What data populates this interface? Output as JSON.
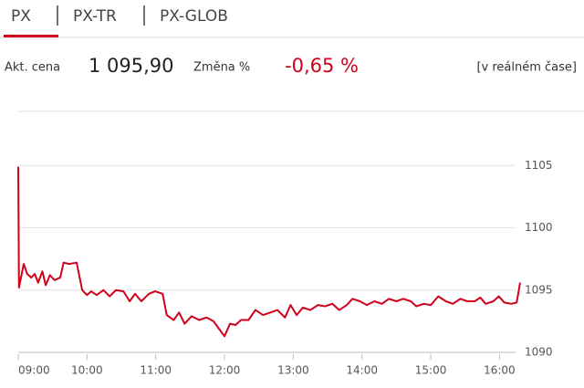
{
  "tabs": [
    "PX",
    "PX-TR",
    "PX-GLOB"
  ],
  "info": {
    "price_label": "Akt. cena",
    "price": "1 095,90",
    "change_label": "Změna %",
    "change": "-0,65 %",
    "realtime": "[v reálném čase]"
  },
  "chart_data": {
    "type": "line",
    "x": [
      9.0,
      9.01,
      9.08,
      9.13,
      9.19,
      9.24,
      9.29,
      9.35,
      9.4,
      9.46,
      9.53,
      9.61,
      9.66,
      9.74,
      9.85,
      9.93,
      10.0,
      10.06,
      10.14,
      10.24,
      10.33,
      10.42,
      10.53,
      10.62,
      10.7,
      10.79,
      10.9,
      10.99,
      11.1,
      11.16,
      11.26,
      11.34,
      11.42,
      11.52,
      11.63,
      11.74,
      11.84,
      11.92,
      12.0,
      12.08,
      12.16,
      12.24,
      12.35,
      12.45,
      12.56,
      12.67,
      12.77,
      12.88,
      12.96,
      13.05,
      13.14,
      13.25,
      13.36,
      13.46,
      13.57,
      13.67,
      13.78,
      13.86,
      13.97,
      14.07,
      14.18,
      14.29,
      14.39,
      14.5,
      14.6,
      14.71,
      14.79,
      14.9,
      15.0,
      15.11,
      15.22,
      15.32,
      15.43,
      15.53,
      15.64,
      15.72,
      15.8,
      15.91,
      15.99,
      16.07,
      16.17,
      16.25,
      16.3
    ],
    "series": [
      {
        "color": "#d0021b",
        "values": [
          1104.9,
          1095.2,
          1097.1,
          1096.3,
          1096.0,
          1096.3,
          1095.6,
          1096.5,
          1095.4,
          1096.2,
          1095.8,
          1096.0,
          1097.2,
          1097.1,
          1097.2,
          1095.0,
          1094.6,
          1094.9,
          1094.6,
          1095.0,
          1094.5,
          1095.0,
          1094.9,
          1094.1,
          1094.7,
          1094.1,
          1094.7,
          1094.9,
          1094.7,
          1093.0,
          1092.6,
          1093.2,
          1092.3,
          1092.9,
          1092.6,
          1092.8,
          1092.5,
          1091.9,
          1091.3,
          1092.3,
          1092.2,
          1092.6,
          1092.6,
          1093.4,
          1093.0,
          1093.2,
          1093.4,
          1092.8,
          1093.8,
          1093.0,
          1093.6,
          1093.4,
          1093.8,
          1093.7,
          1093.9,
          1093.4,
          1093.8,
          1094.3,
          1094.1,
          1093.8,
          1094.1,
          1093.9,
          1094.3,
          1094.1,
          1094.3,
          1094.1,
          1093.7,
          1093.9,
          1093.8,
          1094.5,
          1094.1,
          1093.9,
          1094.3,
          1094.1,
          1094.1,
          1094.4,
          1093.9,
          1094.1,
          1094.5,
          1094.0,
          1093.9,
          1094.0,
          1095.6
        ]
      }
    ],
    "xlim": [
      9,
      16.3
    ],
    "xticks": [
      {
        "value": 9,
        "label": "09:00"
      },
      {
        "value": 10,
        "label": "10:00"
      },
      {
        "value": 11,
        "label": "11:00"
      },
      {
        "value": 12,
        "label": "12:00"
      },
      {
        "value": 13,
        "label": "13:00"
      },
      {
        "value": 14,
        "label": "14:00"
      },
      {
        "value": 15,
        "label": "15:00"
      },
      {
        "value": 16,
        "label": "16:00"
      }
    ],
    "ylim": [
      1090,
      1110
    ],
    "yticks": [
      1090,
      1095,
      1100,
      1105
    ],
    "grid": true
  }
}
